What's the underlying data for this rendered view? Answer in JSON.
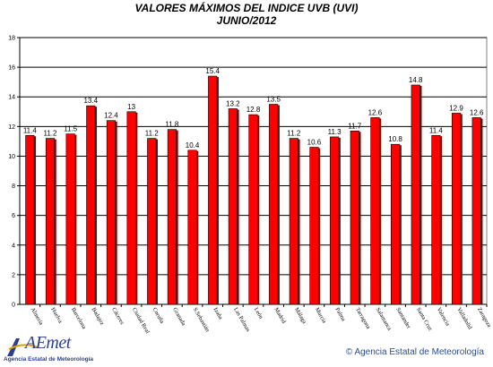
{
  "chart_data": {
    "type": "bar",
    "title": "VALORES MÁXIMOS DEL INDICE UVB (UVI)",
    "subtitle": "JUNIO/2012",
    "categories": [
      "Almería",
      "Huelva",
      "Barcelona",
      "Badajoz",
      "Cáceres",
      "Ciudad Real",
      "Coruña",
      "Granada",
      "S.Sebastián",
      "Izaña",
      "Las Palmas",
      "León",
      "Madrid",
      "Málaga",
      "Murcia",
      "Palma",
      "Tarragona",
      "Salamanca",
      "Santander",
      "Santa Cruz",
      "Valencia",
      "Valladolid",
      "Zaragoza"
    ],
    "values": [
      11.4,
      11.2,
      11.5,
      13.4,
      12.4,
      13,
      11.2,
      11.8,
      10.4,
      15.4,
      13.2,
      12.8,
      13.5,
      11.2,
      10.6,
      11.3,
      11.7,
      12.6,
      10.8,
      14.8,
      11.4,
      12.9,
      12.6
    ],
    "value_labels": [
      "11.4",
      "11.2",
      "11.5",
      "13.4",
      "12.4",
      "13",
      "11.2",
      "11.8",
      "10.4",
      "15.4",
      "13.2",
      "12.8",
      "13.5",
      "11.2",
      "10.6",
      "11.3",
      "11.7",
      "12.6",
      "10.8",
      "14.8",
      "11.4",
      "12.9",
      "12.6"
    ],
    "ylim": [
      0,
      18
    ],
    "yticks": [
      "0",
      "2",
      "4",
      "6",
      "8",
      "10",
      "12",
      "14",
      "16",
      "18"
    ],
    "grid": true,
    "bar_color": "#ff0000",
    "gridline_color": "#000000"
  },
  "footer": {
    "logo_text": "AEmet",
    "logo_subtitle": "Agencia Estatal de Meteorología",
    "copyright": "© Agencia Estatal de Meteorología"
  },
  "colors": {
    "logo_blue": "#2b3f8f"
  }
}
